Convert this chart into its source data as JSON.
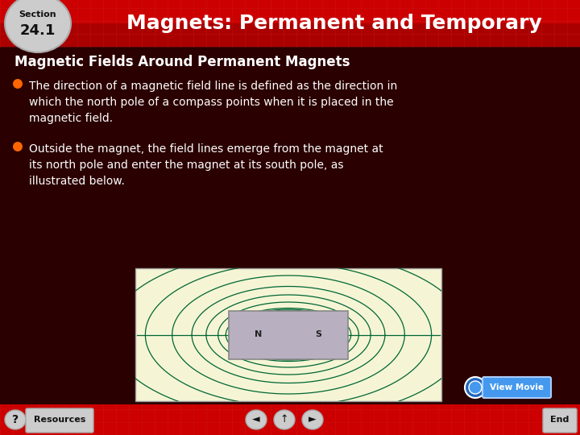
{
  "bg_color": "#2a0000",
  "header_color": "#cc0000",
  "header_dark_color": "#8b0000",
  "header_text": "Magnets: Permanent and Temporary",
  "subtitle": "Magnetic Fields Around Permanent Magnets",
  "subtitle_color": "#ffffff",
  "bullet1_line1": "The direction of a magnetic field line is defined as the direction in",
  "bullet1_line2": "which the north pole of a compass points when it is placed in the",
  "bullet1_line3": "magnetic field.",
  "bullet2_line1": "Outside the magnet, the field lines emerge from the magnet at",
  "bullet2_line2": "its north pole and enter the magnet at its south pole, as",
  "bullet2_line3": "illustrated below.",
  "bullet_color": "#ffffff",
  "bullet_dot_color": "#ff6600",
  "footer_color": "#cc0000",
  "image_bg": "#f5f5d5",
  "magnet_color": "#b8b0c0",
  "magnet_edge_color": "#888888",
  "field_line_color": "#006633",
  "view_movie_bg": "#4499ee",
  "grid_line_color": "#bb0000",
  "section_badge_color": "#cccccc",
  "section_text_color": "#111111",
  "footer_button_color": "#cccccc",
  "footer_button_text": "#111111"
}
